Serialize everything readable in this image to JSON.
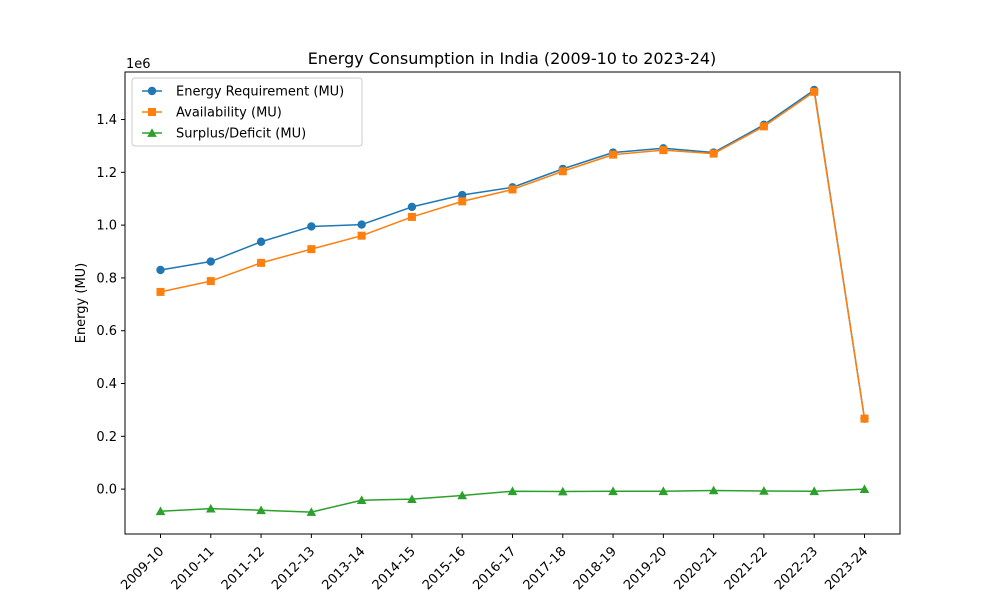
{
  "chart_data": {
    "type": "line",
    "title": "Energy Consumption in India (2009-10 to 2023-24)",
    "xlabel": "",
    "ylabel": "Energy (MU)",
    "y_multiplier_label": "1e6",
    "categories": [
      "2009-10",
      "2010-11",
      "2011-12",
      "2012-13",
      "2013-14",
      "2014-15",
      "2015-16",
      "2016-17",
      "2017-18",
      "2018-19",
      "2019-20",
      "2020-21",
      "2021-22",
      "2022-23",
      "2023-24"
    ],
    "ylim": [
      -0.17,
      1.58
    ],
    "yticks": [
      0.0,
      0.2,
      0.4,
      0.6,
      0.8,
      1.0,
      1.2,
      1.4
    ],
    "ytick_labels": [
      "0.0",
      "0.2",
      "0.4",
      "0.6",
      "0.8",
      "1.0",
      "1.2",
      "1.4"
    ],
    "grid": false,
    "legend_position": "upper-left",
    "series": [
      {
        "name": "Energy Requirement (MU)",
        "color": "#1f77b4",
        "marker": "circle",
        "values": [
          0.83,
          0.862,
          0.937,
          0.995,
          1.002,
          1.069,
          1.114,
          1.143,
          1.213,
          1.275,
          1.291,
          1.275,
          1.38,
          1.512,
          0.267
        ]
      },
      {
        "name": "Availability (MU)",
        "color": "#ff7f0e",
        "marker": "square",
        "values": [
          0.747,
          0.788,
          0.857,
          0.909,
          0.96,
          1.031,
          1.09,
          1.135,
          1.204,
          1.267,
          1.284,
          1.271,
          1.374,
          1.505,
          0.267
        ]
      },
      {
        "name": "Surplus/Deficit (MU)",
        "color": "#2ca02c",
        "marker": "triangle",
        "values": [
          -0.084,
          -0.074,
          -0.08,
          -0.087,
          -0.042,
          -0.038,
          -0.024,
          -0.008,
          -0.009,
          -0.008,
          -0.008,
          -0.005,
          -0.007,
          -0.008,
          0.0
        ]
      }
    ]
  }
}
